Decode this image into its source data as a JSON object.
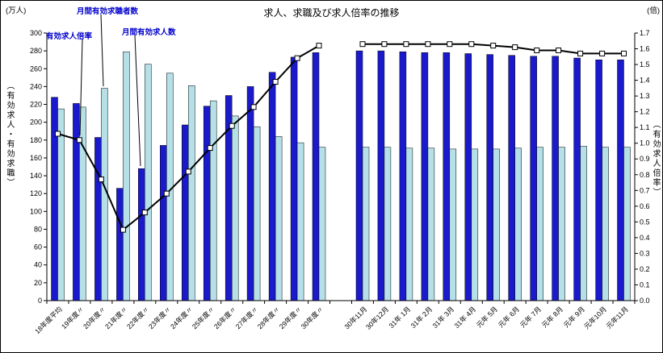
{
  "chart": {
    "title": "求人、求職及び求人倍率の推移",
    "left_unit": "(万人)",
    "right_unit": "(倍)",
    "left_axis_title": "（有効求人・有効求職）",
    "right_axis_title": "（有効求人倍率）",
    "annotations": {
      "ratio_label": "有効求人倍率",
      "seekers_label": "月間有効求職者数",
      "offers_label": "月間有効求人数"
    }
  },
  "chart_data": {
    "type": "combo",
    "title": "求人、求職及び求人倍率の推移",
    "grid": false,
    "legend_position": "none",
    "categories": [
      "18年度平均",
      "19年度〃",
      "20年度〃",
      "21年度〃",
      "22年度〃",
      "23年度〃",
      "24年度〃",
      "25年度〃",
      "26年度〃",
      "27年度〃",
      "28年度〃",
      "29年度〃",
      "30年度〃",
      "30年11月",
      "30年12月",
      "31年 1月",
      "31年 2月",
      "31年 3月",
      "31年 4月",
      "元年 5月",
      "元年 6月",
      "元年 7月",
      "元年 8月",
      "元年 9月",
      "元年10月",
      "元年11月"
    ],
    "gap_after": "30年度〃",
    "left_axis": {
      "min": 0,
      "max": 300,
      "step": 20,
      "unit": "万人",
      "label": "（有効求人・有効求職）"
    },
    "right_axis": {
      "min": 0,
      "max": 1.7,
      "step": 0.1,
      "unit": "倍",
      "label": "（有効求人倍率）"
    },
    "series": [
      {
        "name": "月間有効求人数",
        "type": "bar",
        "axis": "left",
        "color": "#1a1acc",
        "values": [
          228,
          221,
          183,
          126,
          148,
          174,
          197,
          218,
          230,
          240,
          256,
          273,
          278,
          280,
          280,
          279,
          278,
          278,
          277,
          276,
          275,
          274,
          274,
          272,
          270,
          270
        ]
      },
      {
        "name": "月間有効求職者数",
        "type": "bar",
        "axis": "left",
        "color": "#b5e0e8",
        "values": [
          215,
          217,
          238,
          279,
          265,
          255,
          241,
          224,
          207,
          195,
          184,
          177,
          172,
          172,
          172,
          171,
          171,
          170,
          170,
          170,
          171,
          172,
          172,
          173,
          172,
          172
        ]
      },
      {
        "name": "有効求人倍率",
        "type": "line",
        "axis": "right",
        "color": "#000000",
        "marker": "white-square",
        "values": [
          1.06,
          1.02,
          0.77,
          0.45,
          0.56,
          0.68,
          0.82,
          0.97,
          1.11,
          1.23,
          1.39,
          1.54,
          1.62,
          1.63,
          1.63,
          1.63,
          1.63,
          1.63,
          1.63,
          1.62,
          1.61,
          1.59,
          1.59,
          1.57,
          1.57,
          1.57
        ]
      }
    ]
  }
}
